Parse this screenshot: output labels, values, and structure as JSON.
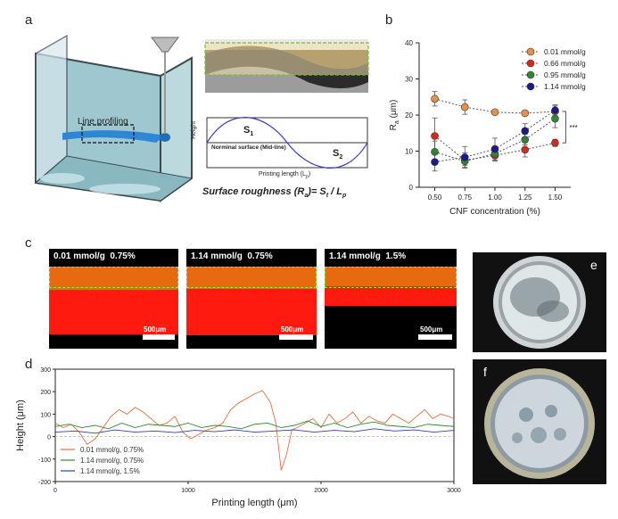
{
  "panels": {
    "a": {
      "label": "a",
      "line_profiling": "Line profiling",
      "s1": "S",
      "s1_sub": "1",
      "s2": "S",
      "s2_sub": "2",
      "nominal": "Norminal surface (Mid-line)",
      "height_axis": "Height",
      "length_axis": "Printing length (L",
      "length_axis_sub": "p",
      "length_axis_end": ")",
      "formula": "Surface roughness (R",
      "formula_sub": "a",
      "formula_mid": ")= S",
      "formula_sub2": "t",
      "formula_end": " / L",
      "formula_sub3": "p"
    },
    "b": {
      "label": "b"
    },
    "c": {
      "label": "c",
      "images": [
        {
          "title": "0.01 mmol/g  0.75%",
          "scale": "500μm"
        },
        {
          "title": "1.14 mmol/g  0.75%",
          "scale": "500μm"
        },
        {
          "title": "1.14 mmol/g  1.5%",
          "scale": "500μm"
        }
      ]
    },
    "d": {
      "label": "d"
    },
    "e": {
      "label": "e"
    },
    "f": {
      "label": "f"
    }
  },
  "chart_data": [
    {
      "type": "scatter",
      "panel": "b",
      "xlabel": "CNF concentration (%)",
      "ylabel": "R",
      "ylabel_sub": "a",
      "ylabel_unit": " (μm)",
      "x": [
        0.5,
        0.75,
        1.0,
        1.25,
        1.5
      ],
      "xticks": [
        "0.50",
        "0.75",
        "1.00",
        "1.25",
        "1.50"
      ],
      "yticks": [
        0,
        10,
        20,
        30,
        40
      ],
      "ylim": [
        0,
        40
      ],
      "xlim": [
        0.37,
        1.63
      ],
      "legend_position": "top-right",
      "significance": "***",
      "series": [
        {
          "name": "0.01 mmol/g",
          "color": "#e8904a",
          "values": [
            24.5,
            22.2,
            20.8,
            20.5,
            21.0
          ],
          "errors": [
            2.0,
            2.0,
            0.6,
            0.5,
            1.5
          ]
        },
        {
          "name": "0.66 mmol/g",
          "color": "#d42a1e",
          "values": [
            14.2,
            7.5,
            8.8,
            10.4,
            12.3
          ],
          "errors": [
            5.0,
            2.0,
            1.5,
            2.0,
            1.0
          ]
        },
        {
          "name": "0.95 mmol/g",
          "color": "#2f8a2f",
          "values": [
            9.8,
            7.2,
            9.3,
            13.2,
            19.0
          ],
          "errors": [
            3.0,
            1.2,
            2.0,
            1.5,
            2.5
          ]
        },
        {
          "name": "1.14 mmol/g",
          "color": "#1a1a8c",
          "values": [
            7.0,
            8.3,
            10.6,
            15.6,
            21.3
          ],
          "errors": [
            2.5,
            3.0,
            3.0,
            2.0,
            1.5
          ]
        }
      ]
    },
    {
      "type": "line",
      "panel": "d",
      "xlabel": "Printing length (μm)",
      "ylabel": "Height (μm)",
      "xlim": [
        0,
        3000
      ],
      "ylim": [
        -200,
        300
      ],
      "xticks": [
        0,
        1000,
        2000,
        3000
      ],
      "yticks": [
        -200,
        -100,
        0,
        100,
        200,
        300
      ],
      "legend_position": "bottom-left",
      "series": [
        {
          "name": "0.01 mmol/g, 0.75%",
          "color": "#e07040",
          "x": [
            0,
            60,
            120,
            180,
            240,
            300,
            360,
            420,
            480,
            540,
            600,
            660,
            720,
            780,
            840,
            900,
            960,
            1020,
            1080,
            1140,
            1200,
            1260,
            1320,
            1380,
            1440,
            1500,
            1560,
            1620,
            1660,
            1700,
            1740,
            1780,
            1820,
            1880,
            1940,
            2000,
            2060,
            2120,
            2180,
            2240,
            2300,
            2360,
            2420,
            2480,
            2540,
            2600,
            2660,
            2720,
            2780,
            2840,
            2900,
            2960,
            3000
          ],
          "values": [
            60,
            40,
            55,
            20,
            -35,
            -10,
            40,
            90,
            120,
            100,
            130,
            110,
            80,
            50,
            60,
            90,
            20,
            -10,
            10,
            30,
            40,
            60,
            120,
            150,
            170,
            190,
            205,
            150,
            60,
            -150,
            -80,
            30,
            40,
            60,
            80,
            40,
            100,
            60,
            80,
            110,
            60,
            90,
            70,
            60,
            100,
            80,
            60,
            90,
            120,
            80,
            100,
            90,
            80
          ]
        },
        {
          "name": "1.14 mmol/g, 0.75%",
          "color": "#2f8a2f",
          "x": [
            0,
            100,
            200,
            300,
            400,
            500,
            600,
            700,
            800,
            900,
            1000,
            1100,
            1200,
            1300,
            1400,
            1500,
            1600,
            1700,
            1800,
            1900,
            2000,
            2100,
            2200,
            2300,
            2400,
            2500,
            2600,
            2700,
            2800,
            2900,
            3000
          ],
          "values": [
            45,
            55,
            40,
            50,
            35,
            60,
            40,
            55,
            50,
            45,
            60,
            40,
            50,
            45,
            35,
            55,
            60,
            40,
            50,
            70,
            45,
            60,
            40,
            55,
            65,
            50,
            45,
            40,
            55,
            50,
            45
          ]
        },
        {
          "name": "1.14 mmol/g, 1.5%",
          "color": "#2c3fb0",
          "x": [
            0,
            150,
            300,
            450,
            600,
            750,
            900,
            1050,
            1200,
            1350,
            1500,
            1650,
            1800,
            1950,
            2100,
            2250,
            2400,
            2550,
            2700,
            2850,
            3000
          ],
          "values": [
            20,
            25,
            15,
            30,
            20,
            25,
            18,
            28,
            22,
            30,
            20,
            25,
            30,
            20,
            28,
            22,
            35,
            25,
            30,
            20,
            28
          ]
        }
      ]
    }
  ],
  "photo_e": {
    "label": "e"
  },
  "photo_f": {
    "label": "f"
  }
}
